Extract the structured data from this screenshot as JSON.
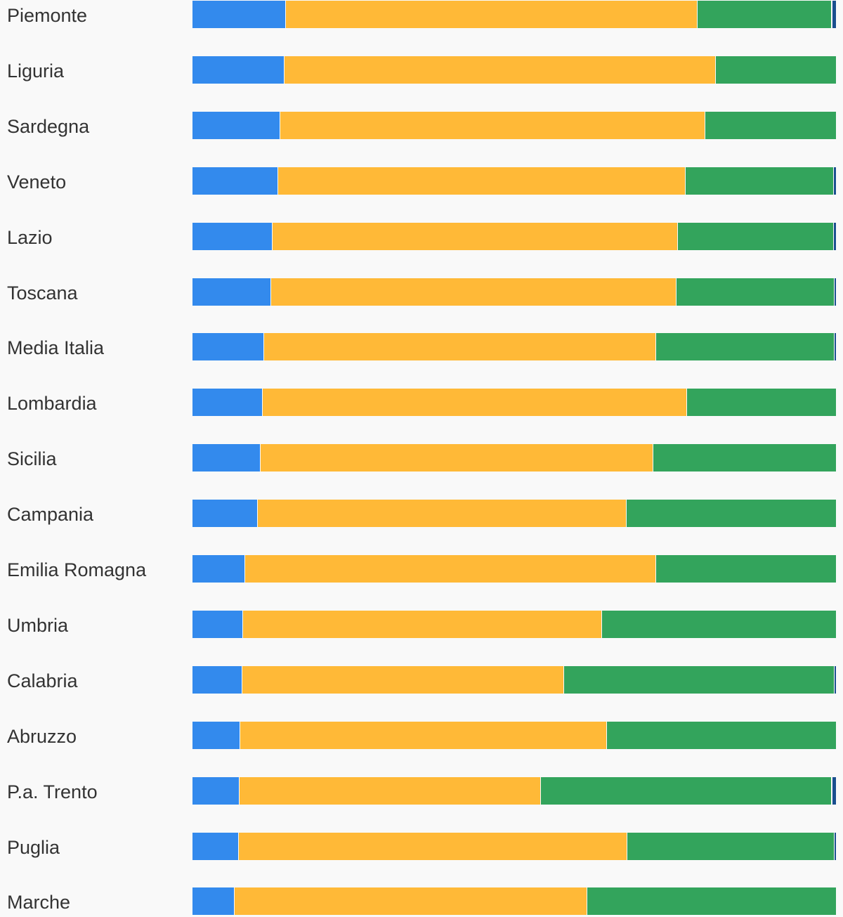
{
  "chart_data": {
    "type": "bar",
    "orientation": "horizontal",
    "stacked": true,
    "normalized": true,
    "colors": [
      "#338aed",
      "#ffb937",
      "#33a45c",
      "#1a4f8f"
    ],
    "categories": [
      "Piemonte",
      "Liguria",
      "Sardegna",
      "Veneto",
      "Lazio",
      "Toscana",
      "Media Italia",
      "Lombardia",
      "Sicilia",
      "Campania",
      "Emilia Romagna",
      "Umbria",
      "Calabria",
      "Abruzzo",
      "P.a. Trento",
      "Puglia",
      "Marche"
    ],
    "series": [
      {
        "values": [
          14.5,
          14.3,
          13.7,
          13.3,
          12.4,
          12.2,
          11.1,
          10.9,
          10.6,
          10.2,
          8.2,
          7.9,
          7.8,
          7.4,
          7.3,
          7.2,
          6.6
        ]
      },
      {
        "values": [
          64.0,
          67.0,
          66.0,
          63.3,
          63.0,
          63.0,
          60.9,
          66.0,
          61.0,
          57.3,
          63.9,
          55.7,
          49.9,
          57.0,
          46.8,
          60.4,
          54.8
        ]
      },
      {
        "values": [
          20.9,
          18.7,
          20.3,
          23.1,
          24.3,
          24.6,
          27.8,
          23.1,
          28.4,
          32.5,
          27.9,
          36.4,
          42.1,
          35.6,
          45.3,
          32.2,
          38.6
        ]
      },
      {
        "values": [
          0.6,
          0.0,
          0.0,
          0.3,
          0.3,
          0.2,
          0.2,
          0.0,
          0.0,
          0.0,
          0.0,
          0.0,
          0.2,
          0.0,
          0.6,
          0.2,
          0.0
        ]
      }
    ],
    "xlim": [
      0,
      100
    ],
    "grid": false,
    "legend": "none"
  }
}
